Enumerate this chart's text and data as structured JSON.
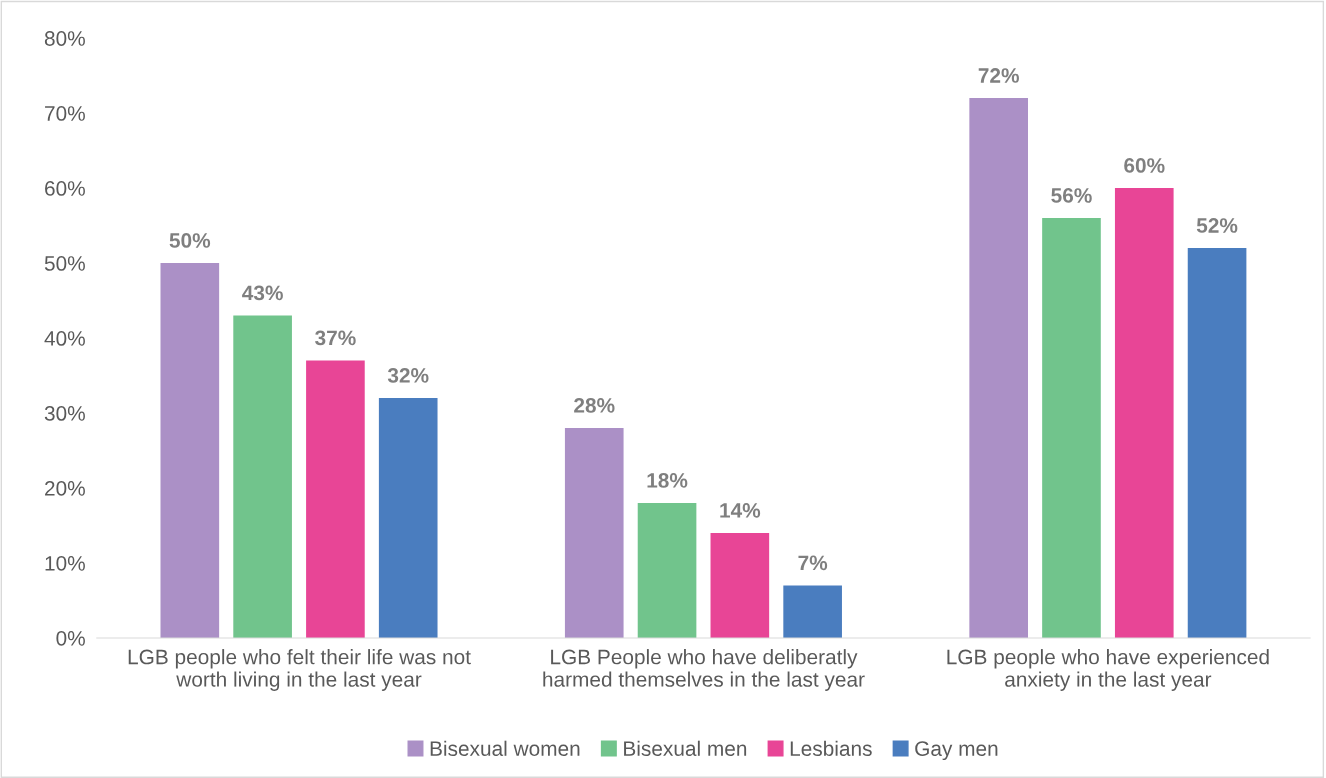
{
  "chart_data": {
    "type": "bar",
    "categories": [
      "LGB people who felt their life was not\nworth living in the last year",
      "LGB People who have deliberatly\nharmed themselves in the last year",
      "LGB people who have experienced\nanxiety in the last year"
    ],
    "series": [
      {
        "name": "Bisexual women",
        "color": "#ab90c6",
        "values": [
          50,
          28,
          72
        ],
        "value_labels": [
          "50%",
          "28%",
          "72%"
        ]
      },
      {
        "name": "Bisexual men",
        "color": "#71c48c",
        "values": [
          43,
          18,
          56
        ],
        "value_labels": [
          "43%",
          "18%",
          "56%"
        ]
      },
      {
        "name": "Lesbians",
        "color": "#e84596",
        "values": [
          37,
          14,
          60
        ],
        "value_labels": [
          "37%",
          "14%",
          "60%"
        ]
      },
      {
        "name": "Gay men",
        "color": "#4a7dbf",
        "values": [
          32,
          7,
          52
        ],
        "value_labels": [
          "32%",
          "7%",
          "52%"
        ]
      }
    ],
    "ylim": [
      0,
      80
    ],
    "yticks": [
      {
        "value": 0,
        "label": "0%"
      },
      {
        "value": 10,
        "label": "10%"
      },
      {
        "value": 20,
        "label": "20%"
      },
      {
        "value": 30,
        "label": "30%"
      },
      {
        "value": 40,
        "label": "40%"
      },
      {
        "value": 50,
        "label": "50%"
      },
      {
        "value": 60,
        "label": "60%"
      },
      {
        "value": 70,
        "label": "70%"
      },
      {
        "value": 80,
        "label": "80%"
      }
    ],
    "grid": false,
    "legend": "bottom"
  }
}
